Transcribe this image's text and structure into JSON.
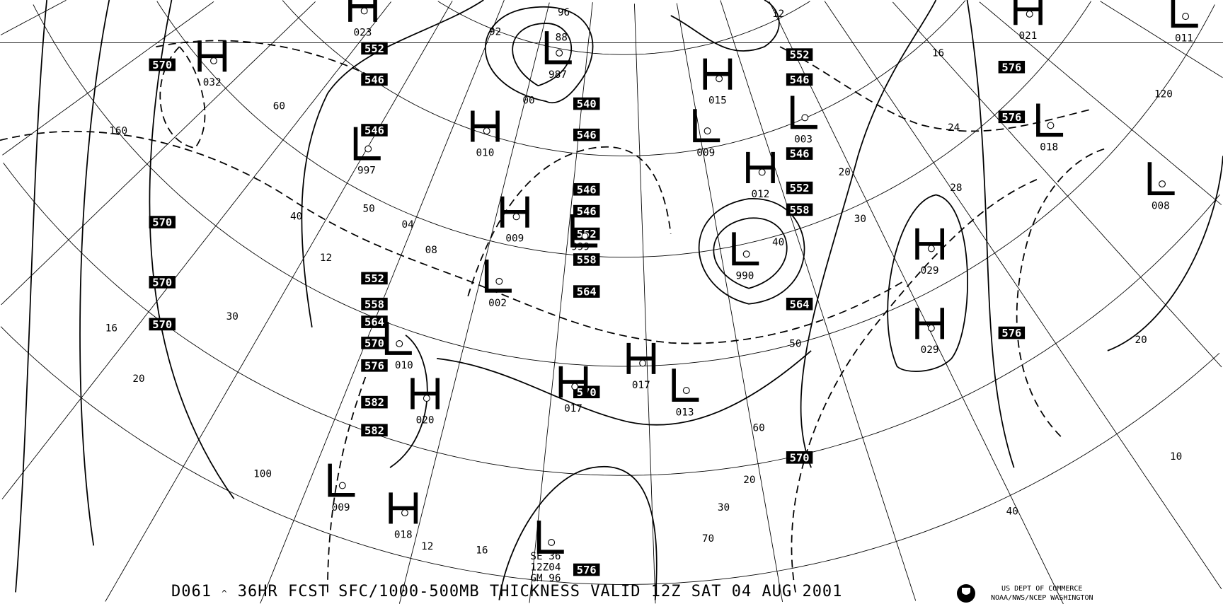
{
  "caption": {
    "chart_id": "D061",
    "caret": "^",
    "title": "36HR FCST SFC/1000-500MB THICKNESS VALID 12Z SAT 04 AUG 2001"
  },
  "agency": {
    "line1": "US DEPT OF COMMERCE",
    "line2": "NOAA/NWS/NCEP WASHINGTON"
  },
  "legend_block": {
    "line1": "SE 36",
    "line2": "12Z04",
    "line3": "GM 96"
  },
  "colors": {
    "ink": "#000000",
    "background": "#ffffff"
  },
  "pressure_centers": [
    {
      "type": "H",
      "value": "032"
    },
    {
      "type": "L",
      "value": "997"
    },
    {
      "type": "H",
      "value": "023"
    },
    {
      "type": "L",
      "value": "987"
    },
    {
      "type": "H",
      "value": "010"
    },
    {
      "type": "H",
      "value": "009"
    },
    {
      "type": "L",
      "value": "999"
    },
    {
      "type": "L",
      "value": "002"
    },
    {
      "type": "H",
      "value": "015"
    },
    {
      "type": "L",
      "value": "009"
    },
    {
      "type": "L",
      "value": "003"
    },
    {
      "type": "H",
      "value": "012"
    },
    {
      "type": "L",
      "value": "990"
    },
    {
      "type": "H",
      "value": "021"
    },
    {
      "type": "L",
      "value": "011"
    },
    {
      "type": "L",
      "value": "018"
    },
    {
      "type": "L",
      "value": "008"
    },
    {
      "type": "H",
      "value": "029"
    },
    {
      "type": "H",
      "value": "029"
    },
    {
      "type": "H",
      "value": "017"
    },
    {
      "type": "L",
      "value": "013"
    },
    {
      "type": "H",
      "value": "017"
    },
    {
      "type": "H",
      "value": "020"
    },
    {
      "type": "L",
      "value": "010"
    },
    {
      "type": "L",
      "value": "009"
    },
    {
      "type": "H",
      "value": "018"
    },
    {
      "type": "L",
      "value": ""
    }
  ],
  "thickness_labels": [
    "570",
    "552",
    "546",
    "546",
    "540",
    "546",
    "546",
    "546",
    "552",
    "558",
    "564",
    "570",
    "570",
    "570",
    "552",
    "558",
    "564",
    "570",
    "576",
    "582",
    "582",
    "570",
    "552",
    "546",
    "546",
    "552",
    "558",
    "564",
    "570",
    "576",
    "576",
    "576",
    "576"
  ],
  "contour_labels": [
    "160",
    "60",
    "50",
    "40",
    "30",
    "20",
    "16",
    "12",
    "08",
    "04",
    "00",
    "96",
    "92",
    "88",
    "12",
    "16",
    "20",
    "24",
    "28",
    "30",
    "40",
    "50",
    "60",
    "70",
    "20",
    "30",
    "40",
    "10",
    "20",
    "120",
    "100",
    "12",
    "16"
  ]
}
